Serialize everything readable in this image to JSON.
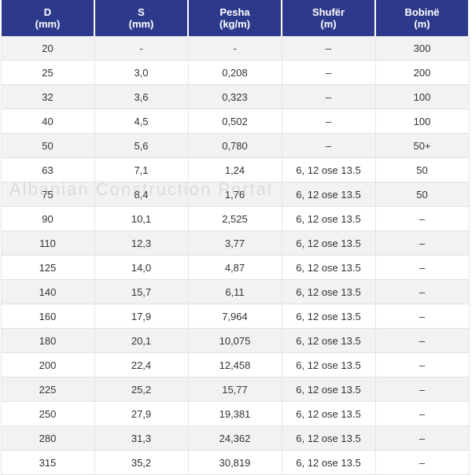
{
  "columns": [
    {
      "name": "D",
      "unit": "(mm)"
    },
    {
      "name": "S",
      "unit": "(mm)"
    },
    {
      "name": "Pesha",
      "unit": "(kg/m)"
    },
    {
      "name": "Shufër",
      "unit": "(m)"
    },
    {
      "name": "Bobinë",
      "unit": "(m)"
    }
  ],
  "rows": [
    [
      "20",
      "-",
      "-",
      "–",
      "300"
    ],
    [
      "25",
      "3,0",
      "0,208",
      "–",
      "200"
    ],
    [
      "32",
      "3,6",
      "0,323",
      "–",
      "100"
    ],
    [
      "40",
      "4,5",
      "0,502",
      "–",
      "100"
    ],
    [
      "50",
      "5,6",
      "0,780",
      "–",
      "50+"
    ],
    [
      "63",
      "7,1",
      "1,24",
      "6, 12 ose 13.5",
      "50"
    ],
    [
      "75",
      "8,4",
      "1,76",
      "6, 12 ose 13.5",
      "50"
    ],
    [
      "90",
      "10,1",
      "2,525",
      "6, 12 ose 13.5",
      "–"
    ],
    [
      "110",
      "12,3",
      "3,77",
      "6, 12 ose 13.5",
      "–"
    ],
    [
      "125",
      "14,0",
      "4,87",
      "6, 12 ose 13.5",
      "–"
    ],
    [
      "140",
      "15,7",
      "6,11",
      "6, 12 ose 13.5",
      "–"
    ],
    [
      "160",
      "17,9",
      "7,964",
      "6, 12 ose 13.5",
      "–"
    ],
    [
      "180",
      "20,1",
      "10,075",
      "6, 12 ose 13.5",
      "–"
    ],
    [
      "200",
      "22,4",
      "12,458",
      "6, 12 ose 13.5",
      "–"
    ],
    [
      "225",
      "25,2",
      "15,77",
      "6, 12 ose 13.5",
      "–"
    ],
    [
      "250",
      "27,9",
      "19,381",
      "6, 12 ose 13.5",
      "–"
    ],
    [
      "280",
      "31,3",
      "24,362",
      "6, 12 ose 13.5",
      "–"
    ],
    [
      "315",
      "35,2",
      "30,819",
      "6, 12 ose 13.5",
      "–"
    ]
  ],
  "watermark": "Albanian Construction Portal",
  "colors": {
    "header_bg": "#2d3a8c",
    "header_text": "#ffffff",
    "row_alt": "#f2f2f2"
  }
}
